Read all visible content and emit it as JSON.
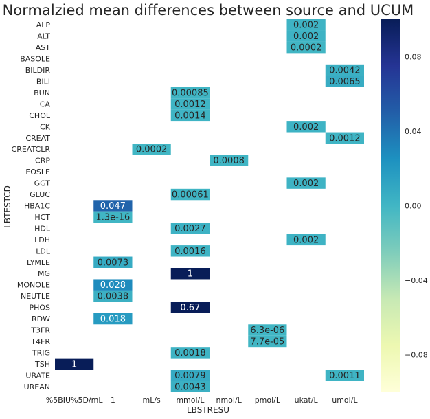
{
  "chart_data": {
    "type": "heatmap",
    "title": "Normalzied mean differences between source and UCUM",
    "xlabel": "LBSTRESU",
    "ylabel": "LBTESTCD",
    "x_categories": [
      "%5BIU%5D/mL",
      "1",
      "mL/s",
      "mmol/L",
      "nmol/L",
      "pmol/L",
      "ukat/L",
      "umol/L"
    ],
    "y_categories": [
      "ALP",
      "ALT",
      "AST",
      "BASOLE",
      "BILDIR",
      "BILI",
      "BUN",
      "CA",
      "CHOL",
      "CK",
      "CREAT",
      "CREATCLR",
      "CRP",
      "EOSLE",
      "GGT",
      "GLUC",
      "HBA1C",
      "HCT",
      "HDL",
      "LDH",
      "LDL",
      "LYMLE",
      "MG",
      "MONOLE",
      "NEUTLE",
      "PHOS",
      "RDW",
      "T3FR",
      "T4FR",
      "TRIG",
      "TSH",
      "URATE",
      "UREAN"
    ],
    "cells": [
      {
        "row": "ALP",
        "col": "ukat/L",
        "value": 0.002,
        "label": "0.002"
      },
      {
        "row": "ALT",
        "col": "ukat/L",
        "value": 0.002,
        "label": "0.002"
      },
      {
        "row": "AST",
        "col": "ukat/L",
        "value": 0.0002,
        "label": "0.0002"
      },
      {
        "row": "BILDIR",
        "col": "umol/L",
        "value": 0.0042,
        "label": "0.0042"
      },
      {
        "row": "BILI",
        "col": "umol/L",
        "value": 0.0065,
        "label": "0.0065"
      },
      {
        "row": "BUN",
        "col": "mmol/L",
        "value": 0.00085,
        "label": "0.00085"
      },
      {
        "row": "CA",
        "col": "mmol/L",
        "value": 0.0012,
        "label": "0.0012"
      },
      {
        "row": "CHOL",
        "col": "mmol/L",
        "value": 0.0014,
        "label": "0.0014"
      },
      {
        "row": "CK",
        "col": "ukat/L",
        "value": 0.002,
        "label": "0.002"
      },
      {
        "row": "CREAT",
        "col": "umol/L",
        "value": 0.0012,
        "label": "0.0012"
      },
      {
        "row": "CREATCLR",
        "col": "mL/s",
        "value": 0.0002,
        "label": "0.0002"
      },
      {
        "row": "CRP",
        "col": "nmol/L",
        "value": 0.0008,
        "label": "0.0008"
      },
      {
        "row": "GGT",
        "col": "ukat/L",
        "value": 0.002,
        "label": "0.002"
      },
      {
        "row": "GLUC",
        "col": "mmol/L",
        "value": 0.00061,
        "label": "0.00061"
      },
      {
        "row": "HBA1C",
        "col": "1",
        "value": 0.047,
        "label": "0.047"
      },
      {
        "row": "HCT",
        "col": "1",
        "value": 1.3e-16,
        "label": "1.3e-16"
      },
      {
        "row": "HDL",
        "col": "mmol/L",
        "value": 0.0027,
        "label": "0.0027"
      },
      {
        "row": "LDH",
        "col": "ukat/L",
        "value": 0.002,
        "label": "0.002"
      },
      {
        "row": "LDL",
        "col": "mmol/L",
        "value": 0.0016,
        "label": "0.0016"
      },
      {
        "row": "LYMLE",
        "col": "1",
        "value": 0.0073,
        "label": "0.0073"
      },
      {
        "row": "MG",
        "col": "mmol/L",
        "value": 1,
        "label": "1"
      },
      {
        "row": "MONOLE",
        "col": "1",
        "value": 0.028,
        "label": "0.028"
      },
      {
        "row": "NEUTLE",
        "col": "1",
        "value": 0.0038,
        "label": "0.0038"
      },
      {
        "row": "PHOS",
        "col": "mmol/L",
        "value": 0.67,
        "label": "0.67"
      },
      {
        "row": "RDW",
        "col": "1",
        "value": 0.018,
        "label": "0.018"
      },
      {
        "row": "T3FR",
        "col": "pmol/L",
        "value": 6.3e-06,
        "label": "6.3e-06"
      },
      {
        "row": "T4FR",
        "col": "pmol/L",
        "value": 7.7e-05,
        "label": "7.7e-05"
      },
      {
        "row": "TRIG",
        "col": "mmol/L",
        "value": 0.0018,
        "label": "0.0018"
      },
      {
        "row": "TSH",
        "col": "%5BIU%5D/mL",
        "value": 1,
        "label": "1"
      },
      {
        "row": "URATE",
        "col": "mmol/L",
        "value": 0.0079,
        "label": "0.0079"
      },
      {
        "row": "URATE",
        "col": "umol/L",
        "value": 0.0011,
        "label": "0.0011"
      },
      {
        "row": "UREAN",
        "col": "mmol/L",
        "value": 0.0043,
        "label": "0.0043"
      }
    ],
    "colorbar": {
      "colormap": "YlGnBu",
      "vmin": -0.1,
      "vmax": 0.1,
      "ticks": [
        0.08,
        0.04,
        0.0,
        -0.04,
        -0.08
      ],
      "tick_labels": [
        "0.08",
        "0.04",
        "0.00",
        "−0.04",
        "−0.08"
      ]
    },
    "grid": false
  }
}
